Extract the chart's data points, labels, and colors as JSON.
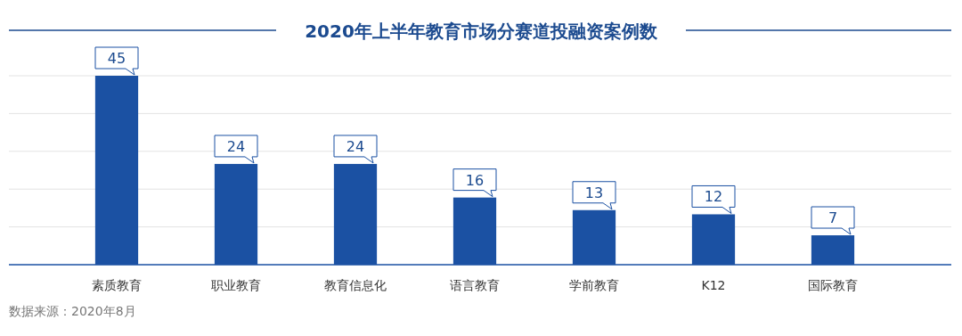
{
  "chart_data": {
    "type": "bar",
    "title": "2020年上半年教育市场分赛道投融资案例数",
    "categories": [
      "素质教育",
      "职业教育",
      "教育信息化",
      "语言教育",
      "学前教育",
      "K12",
      "国际教育"
    ],
    "values": [
      45,
      24,
      24,
      16,
      13,
      12,
      7
    ],
    "color": "#1b51a3",
    "ylim": [
      0,
      45
    ],
    "yticks": [
      {
        "value": 9,
        "label": null
      },
      {
        "value": 18,
        "label": null
      },
      {
        "value": 27,
        "label": null
      },
      {
        "value": 36,
        "label": null
      },
      {
        "value": 45,
        "label": null
      }
    ],
    "grid": "y",
    "tick_labels": "x",
    "data_labels": true,
    "annotations": [
      "数据来源：2020年8月"
    ]
  }
}
